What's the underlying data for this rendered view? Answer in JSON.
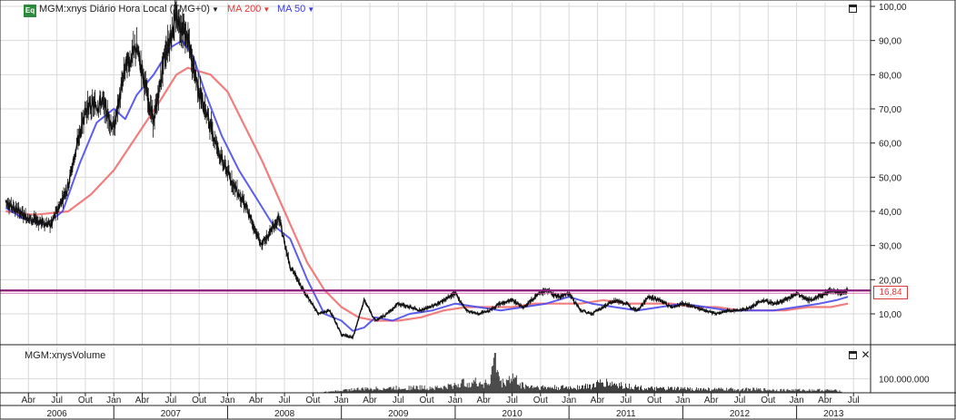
{
  "header": {
    "badge": "Eq",
    "symbol_label": "MGM:xnys Diário Hora Local (TMG+0)",
    "ma200_label": "MA 200",
    "ma50_label": "MA 50"
  },
  "volume_panel": {
    "title": "MGM:xnysVolume",
    "tick_label": "100.000.000"
  },
  "last_price_label": "16,84",
  "colors": {
    "ma200": "#f07070",
    "ma50": "#4a4af0",
    "candle": "#111111",
    "level": "#8a1a7a",
    "grid": "#d9d9d9"
  },
  "chart_data": {
    "type": "line",
    "title": "MGM:xnys Diário Hora Local (TMG+0)",
    "ylim": [
      0,
      100
    ],
    "yticks": [
      "100,00",
      "90,00",
      "80,00",
      "70,00",
      "60,00",
      "50,00",
      "40,00",
      "30,00",
      "20,00",
      "10,00"
    ],
    "ytick_values": [
      100,
      90,
      80,
      70,
      60,
      50,
      40,
      30,
      20,
      10
    ],
    "months": [
      "Abr",
      "Jul",
      "Out",
      "Jan",
      "Abr",
      "Jul",
      "Out",
      "Jan",
      "Abr",
      "Jul",
      "Out",
      "Jan",
      "Abr",
      "Jul",
      "Out",
      "Jan",
      "Abr",
      "Jul",
      "Out",
      "Jan",
      "Abr",
      "Jul",
      "Out",
      "Jan",
      "Abr",
      "Jul",
      "Out",
      "Jan",
      "Abr",
      "Jul"
    ],
    "years": [
      "2006",
      "2007",
      "2008",
      "2009",
      "2010",
      "2011",
      "2012",
      "2013"
    ],
    "horizontal_level": 16.84,
    "series": [
      {
        "name": "MGM:xnys",
        "x": [
          2006.05,
          2006.25,
          2006.45,
          2006.6,
          2006.75,
          2006.9,
          2007.0,
          2007.1,
          2007.2,
          2007.35,
          2007.45,
          2007.55,
          2007.65,
          2007.75,
          2007.85,
          2007.95,
          2008.05,
          2008.15,
          2008.3,
          2008.45,
          2008.55,
          2008.7,
          2008.8,
          2008.9,
          2009.0,
          2009.1,
          2009.2,
          2009.3,
          2009.4,
          2009.5,
          2009.6,
          2009.7,
          2009.85,
          2010.0,
          2010.1,
          2010.2,
          2010.3,
          2010.4,
          2010.5,
          2010.6,
          2010.7,
          2010.8,
          2010.9,
          2011.0,
          2011.1,
          2011.2,
          2011.3,
          2011.4,
          2011.5,
          2011.6,
          2011.7,
          2011.8,
          2011.9,
          2012.0,
          2012.1,
          2012.2,
          2012.3,
          2012.4,
          2012.5,
          2012.6,
          2012.7,
          2012.8,
          2012.9,
          2013.0,
          2013.1,
          2013.2,
          2013.3,
          2013.4,
          2013.45
        ],
        "y": [
          43,
          38,
          36,
          48,
          70,
          72,
          64,
          82,
          88,
          66,
          86,
          97,
          90,
          75,
          65,
          55,
          48,
          42,
          30,
          38,
          24,
          15,
          10,
          11,
          4,
          3,
          14,
          8,
          10,
          13,
          12,
          11,
          13,
          16,
          11,
          10,
          11,
          13,
          14,
          12,
          15,
          17,
          15,
          16,
          11,
          10,
          12,
          14,
          13,
          11,
          15,
          14,
          12,
          13,
          12,
          11,
          10,
          11,
          11,
          12,
          14,
          13,
          14,
          16,
          14,
          15,
          17,
          16,
          17
        ]
      },
      {
        "name": "MA 200",
        "x": [
          2006.05,
          2006.3,
          2006.6,
          2006.8,
          2007.0,
          2007.2,
          2007.4,
          2007.55,
          2007.65,
          2007.75,
          2007.85,
          2008.0,
          2008.15,
          2008.3,
          2008.5,
          2008.7,
          2008.85,
          2009.0,
          2009.15,
          2009.3,
          2009.5,
          2009.7,
          2009.9,
          2010.1,
          2010.3,
          2010.5,
          2010.7,
          2010.9,
          2011.1,
          2011.3,
          2011.5,
          2011.7,
          2011.9,
          2012.1,
          2012.3,
          2012.5,
          2012.7,
          2012.9,
          2013.1,
          2013.3,
          2013.45
        ],
        "y": [
          40,
          39,
          40,
          45,
          52,
          62,
          72,
          80,
          82,
          81,
          80,
          75,
          65,
          55,
          40,
          25,
          17,
          12,
          9,
          8,
          8,
          9,
          11,
          12,
          12,
          12,
          13,
          13,
          13,
          14,
          13,
          13,
          13,
          12,
          12,
          11,
          11,
          11,
          12,
          12,
          13
        ]
      },
      {
        "name": "MA 50",
        "x": [
          2006.05,
          2006.2,
          2006.4,
          2006.55,
          2006.7,
          2006.85,
          2007.0,
          2007.1,
          2007.2,
          2007.35,
          2007.5,
          2007.6,
          2007.7,
          2007.8,
          2007.95,
          2008.1,
          2008.25,
          2008.4,
          2008.55,
          2008.7,
          2008.85,
          2009.0,
          2009.1,
          2009.2,
          2009.3,
          2009.45,
          2009.6,
          2009.8,
          2010.0,
          2010.2,
          2010.4,
          2010.6,
          2010.8,
          2011.0,
          2011.2,
          2011.4,
          2011.6,
          2011.8,
          2012.0,
          2012.2,
          2012.4,
          2012.6,
          2012.8,
          2013.0,
          2013.2,
          2013.35,
          2013.45
        ],
        "y": [
          41,
          38,
          36,
          40,
          54,
          66,
          70,
          67,
          74,
          80,
          88,
          90,
          85,
          75,
          62,
          52,
          44,
          36,
          32,
          20,
          10,
          8,
          5,
          6,
          9,
          8,
          10,
          11,
          13,
          12,
          11,
          12,
          13,
          15,
          13,
          12,
          11,
          12,
          13,
          12,
          11,
          11,
          11,
          12,
          13,
          14,
          15
        ]
      }
    ],
    "volume": {
      "x": [
        2006.05,
        2006.5,
        2007.0,
        2007.5,
        2008.0,
        2008.5,
        2008.9,
        2009.1,
        2009.3,
        2009.6,
        2009.9,
        2010.1,
        2010.3,
        2010.35,
        2010.4,
        2010.5,
        2010.6,
        2010.8,
        2011.0,
        2011.2,
        2011.3,
        2011.5,
        2011.7,
        2012.0,
        2012.3,
        2012.6,
        2012.9,
        2013.2,
        2013.4
      ],
      "y": [
        0,
        0,
        0,
        0,
        0,
        0,
        3,
        10,
        12,
        15,
        15,
        30,
        28,
        100,
        25,
        45,
        20,
        15,
        15,
        20,
        30,
        20,
        12,
        12,
        10,
        10,
        8,
        8,
        6
      ]
    }
  }
}
